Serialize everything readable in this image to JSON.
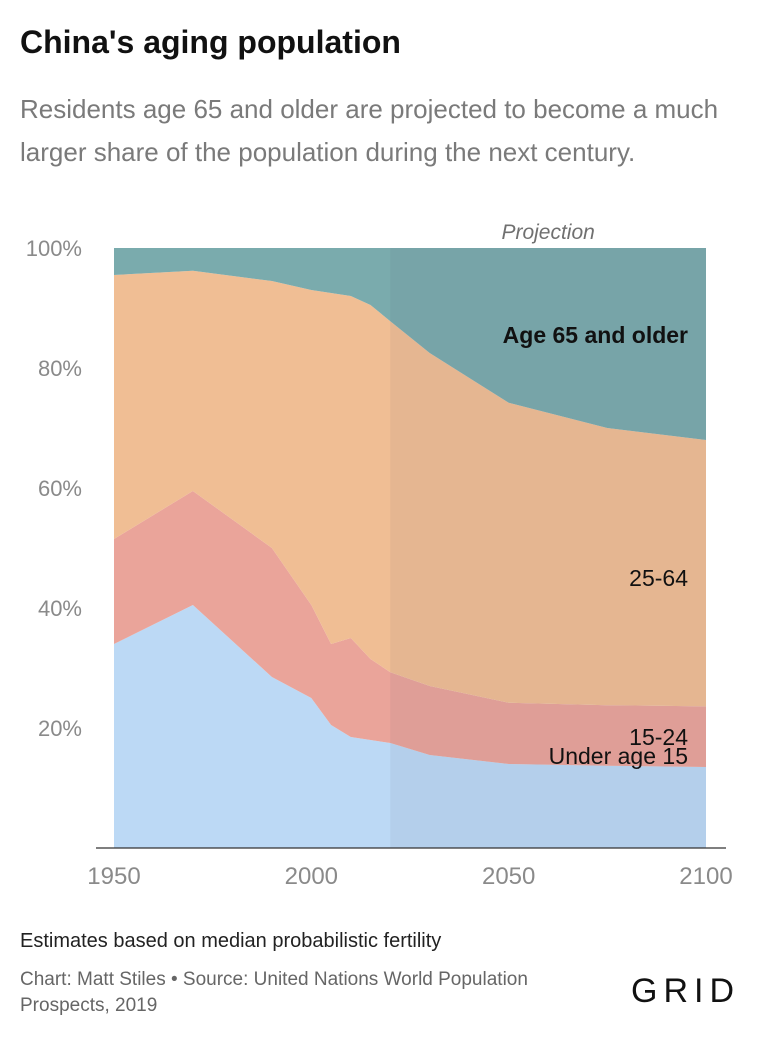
{
  "title": "China's aging population",
  "subtitle": "Residents age 65 and older are projected to become a much larger share of the population during the next century.",
  "note": "Estimates based on median probabilistic fertility",
  "source": "Chart: Matt Stiles • Source: United Nations World Population Prospects, 2019",
  "brand": "GRID",
  "chart_data": {
    "type": "area",
    "stacked": true,
    "x": [
      1950,
      1970,
      1990,
      2000,
      2005,
      2010,
      2015,
      2020,
      2030,
      2050,
      2075,
      2100
    ],
    "x_ticks": [
      "1950",
      "2000",
      "2050",
      "2100"
    ],
    "x_tick_values": [
      1950,
      2000,
      2050,
      2100
    ],
    "y_ticks": [
      "20%",
      "40%",
      "60%",
      "80%",
      "100%"
    ],
    "y_tick_values": [
      20,
      40,
      60,
      80,
      100
    ],
    "ylim": [
      0,
      100
    ],
    "xlim": [
      1950,
      2100
    ],
    "projection_start": 2020,
    "projection_label": "Projection",
    "series": [
      {
        "name": "Under age 15",
        "color": "#bcd9f5",
        "values": [
          34,
          40.5,
          28.5,
          25,
          20.5,
          18.5,
          18,
          17.5,
          15.5,
          14,
          13.7,
          13.5
        ]
      },
      {
        "name": "15-24",
        "color": "#eaa49a",
        "values": [
          17.5,
          19,
          21.5,
          15.5,
          13.5,
          16.5,
          13.5,
          11.8,
          11.5,
          10.2,
          10.1,
          10.1
        ]
      },
      {
        "name": "25-64",
        "color": "#f0be94",
        "values": [
          44,
          36.7,
          44.5,
          52.5,
          58.5,
          57,
          59,
          58.5,
          55.5,
          50,
          46.2,
          44.4
        ]
      },
      {
        "name": "Age 65 and older",
        "color": "#7aabad",
        "values": [
          4.5,
          3.8,
          5.5,
          7,
          7.5,
          8,
          9.5,
          12.2,
          17.5,
          25.8,
          30,
          32
        ]
      }
    ],
    "series_labels": [
      "Under age 15",
      "15-24",
      "25-64",
      "Age 65 and older"
    ]
  }
}
